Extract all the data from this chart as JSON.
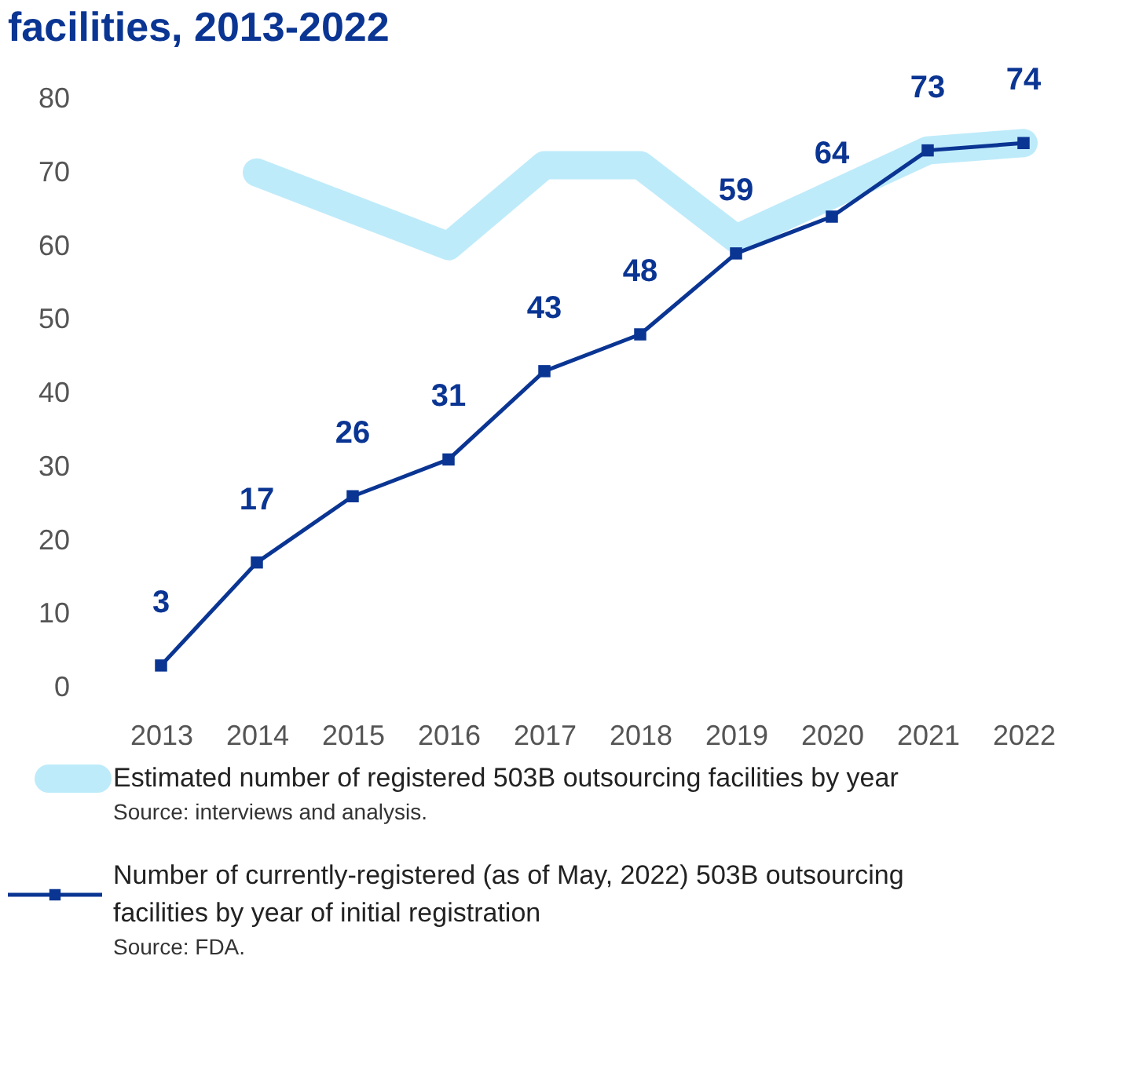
{
  "chart_data": {
    "type": "line",
    "title": "facilities, 2013-2022",
    "categories": [
      "2013",
      "2014",
      "2015",
      "2016",
      "2017",
      "2018",
      "2019",
      "2020",
      "2021",
      "2022"
    ],
    "series": [
      {
        "name": "Estimated number of registered 503B outsourcing facilities by year",
        "color": "#a8e4f8",
        "marker": "none",
        "values": [
          null,
          70,
          65,
          60,
          71,
          71,
          61,
          67,
          73,
          74
        ]
      },
      {
        "name": "Number of currently-registered (as of May, 2022) 503B outsourcing facilities by year of initial registration",
        "color": "#0a3593",
        "marker": "square",
        "values": [
          3,
          17,
          26,
          31,
          43,
          48,
          59,
          64,
          73,
          74
        ],
        "value_labels": [
          "3",
          "17",
          "26",
          "31",
          "43",
          "48",
          "59",
          "64",
          "73",
          "74"
        ]
      }
    ],
    "annotations": [
      "Source: interviews and analysis.",
      "Source: FDA."
    ],
    "ylim": [
      0,
      80
    ],
    "yticks": [
      0,
      10,
      20,
      30,
      40,
      50,
      60,
      70,
      80
    ],
    "grid": false,
    "legend": "bottom"
  }
}
